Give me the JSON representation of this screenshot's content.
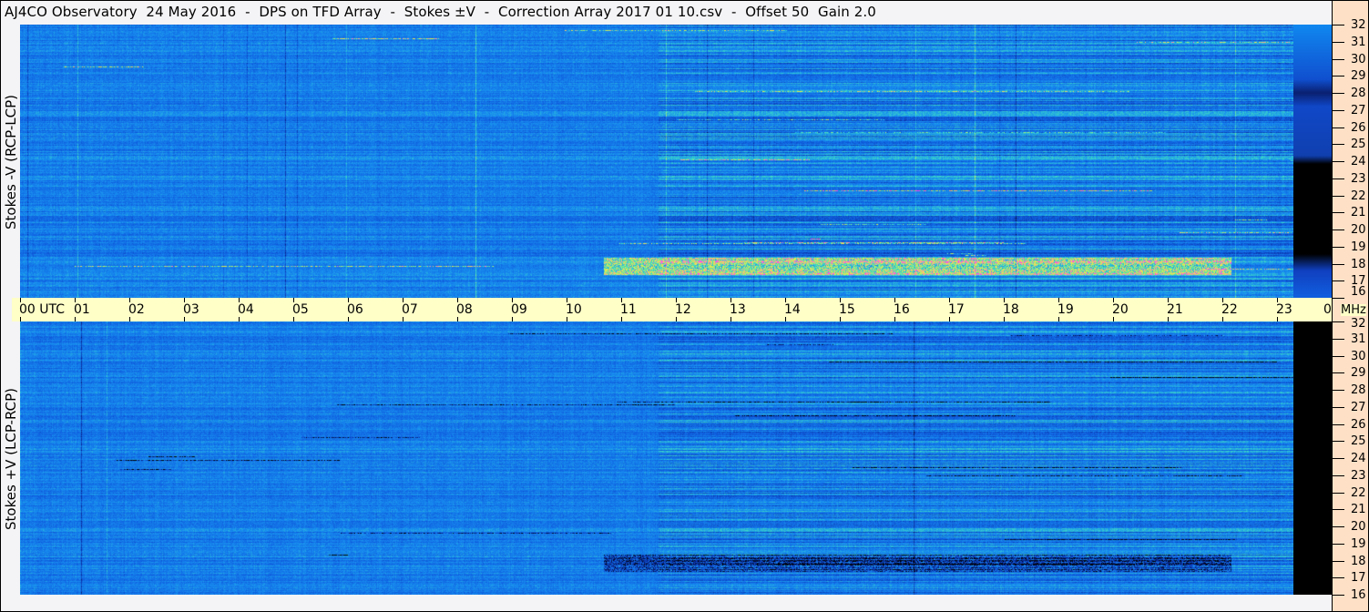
{
  "title": "AJ4CO Observatory  24 May 2016  -  DPS on TFD Array  -  Stokes ±V  -  Correction Array 2017 01 10.csv  -  Offset 50  Gain 2.0",
  "chart_data": [
    {
      "type": "heatmap",
      "panel": "top",
      "ylabel": "Stokes -V (RCP-LCP)",
      "xlabel": "UTC",
      "x_ticks": [
        "00",
        "01",
        "02",
        "03",
        "04",
        "05",
        "06",
        "07",
        "08",
        "09",
        "10",
        "11",
        "12",
        "13",
        "14",
        "15",
        "16",
        "17",
        "18",
        "19",
        "20",
        "21",
        "22",
        "23",
        "00"
      ],
      "y_unit": "MHz",
      "y_ticks": [
        32,
        31,
        30,
        29,
        28,
        27,
        26,
        25,
        24,
        23,
        22,
        21,
        20,
        19,
        18,
        17,
        16
      ],
      "ylim": [
        16,
        32
      ],
      "xlim_hours": [
        0,
        24
      ],
      "colormap": [
        "#000000",
        "#0a2a9a",
        "#1060e0",
        "#1890f0",
        "#40e0c0",
        "#f0f040",
        "#ff40ff"
      ],
      "notes_visible": "strong activity band 17-18 MHz from ~11 to ~22 UTC"
    },
    {
      "type": "heatmap",
      "panel": "bottom",
      "ylabel": "Stokes +V (LCP-RCP)",
      "xlabel": "UTC",
      "y_unit": "MHz",
      "y_ticks": [
        32,
        31,
        30,
        29,
        28,
        27,
        26,
        25,
        24,
        23,
        22,
        21,
        20,
        19,
        18,
        17,
        16
      ],
      "ylim": [
        16,
        32
      ],
      "xlim_hours": [
        0,
        24
      ]
    }
  ],
  "axis": {
    "utc_label": "UTC",
    "mhz_label": "MHz"
  }
}
